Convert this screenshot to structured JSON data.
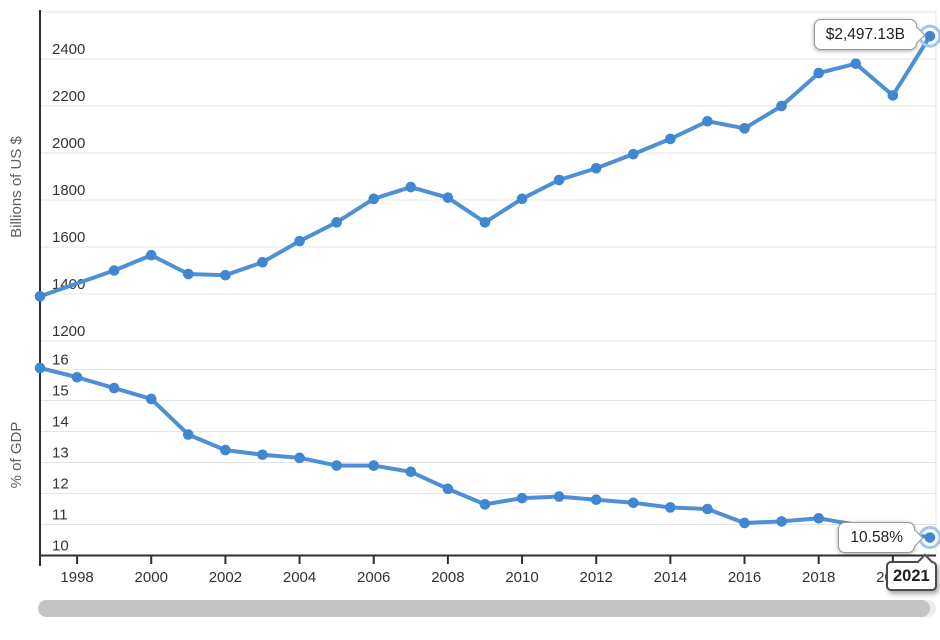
{
  "colors": {
    "series_line": "#4d90d5",
    "series_marker": "#4186d0",
    "marker_halo": "#a5c6ea",
    "gridline": "#e4e4e4",
    "axis": "#2f2f2f",
    "tick_label": "#333333",
    "axis_title": "#5f5f5f",
    "tooltip_border": "#999999",
    "year_box_border": "#4a4a4a",
    "scrollbar_thumb": "#c4c4c4",
    "background": "#ffffff"
  },
  "chart_data": [
    {
      "type": "line",
      "name": "value-usd",
      "ylabel": "Billions of US $",
      "x": [
        1997,
        1998,
        1999,
        2000,
        2001,
        2002,
        2003,
        2004,
        2005,
        2006,
        2007,
        2008,
        2009,
        2010,
        2011,
        2012,
        2013,
        2014,
        2015,
        2016,
        2017,
        2018,
        2019,
        2020,
        2021
      ],
      "values": [
        1390,
        null,
        1500,
        1565,
        1485,
        1480,
        1535,
        1625,
        1705,
        1805,
        1855,
        1810,
        1705,
        1805,
        1885,
        1935,
        1995,
        2060,
        2135,
        2105,
        2200,
        2340,
        2380,
        2245,
        2497.13
      ],
      "y_ticks": [
        1200,
        1400,
        1600,
        1800,
        2000,
        2200,
        2400
      ],
      "unlabeled_gridlines": [
        2600
      ],
      "ylim": [
        1200,
        2600
      ],
      "last_point_label": "$2,497.13B",
      "legend": "none",
      "grid": "horizontal"
    },
    {
      "type": "line",
      "name": "percent-gdp",
      "ylabel": "% of GDP",
      "x": [
        1997,
        1998,
        1999,
        2000,
        2001,
        2002,
        2003,
        2004,
        2005,
        2006,
        2007,
        2008,
        2009,
        2010,
        2011,
        2012,
        2013,
        2014,
        2015,
        2016,
        2017,
        2018,
        2019,
        2020,
        2021
      ],
      "values": [
        16.05,
        15.75,
        15.4,
        15.05,
        13.9,
        13.4,
        13.25,
        13.15,
        12.9,
        12.9,
        12.7,
        12.15,
        11.65,
        11.85,
        11.9,
        11.8,
        11.7,
        11.55,
        11.5,
        11.05,
        11.1,
        11.2,
        null,
        null,
        10.58
      ],
      "y_ticks": [
        10,
        11,
        12,
        13,
        14,
        15,
        16
      ],
      "unlabeled_gridlines": [],
      "ylim": [
        10,
        16.5
      ],
      "last_point_label": "10.58%",
      "legend": "none",
      "grid": "horizontal"
    }
  ],
  "x_axis": {
    "tick_labels": [
      "1998",
      "2000",
      "2002",
      "2004",
      "2006",
      "2008",
      "2010",
      "2012",
      "2014",
      "2016",
      "2018",
      "2020"
    ],
    "highlight_label": "2021"
  },
  "annotations": {
    "usd_tooltip": "$2,497.13B",
    "gdp_tooltip": "10.58%",
    "year_label": "2021"
  }
}
